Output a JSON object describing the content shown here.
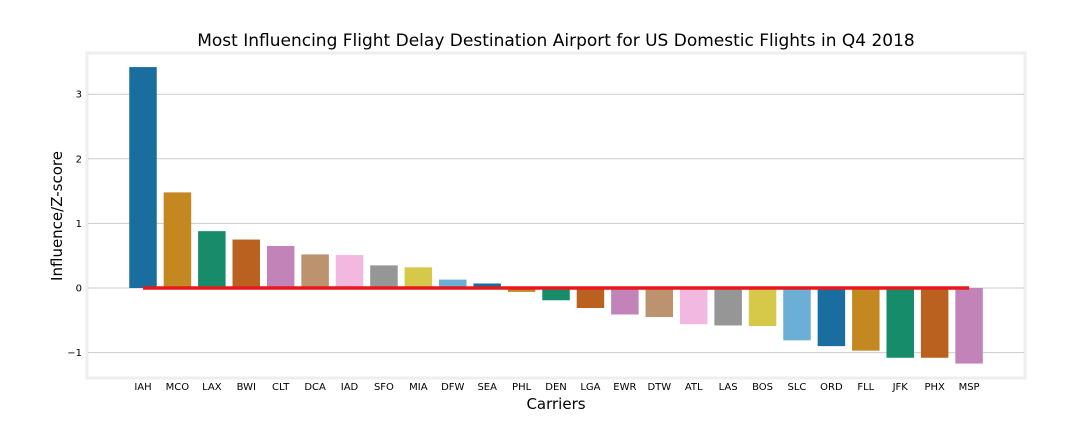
{
  "chart_data": {
    "type": "bar",
    "title": "Most Influencing Flight Delay Destination Airport for US Domestic Flights in Q4 2018",
    "xlabel": "Carriers",
    "ylabel": "Influence/Z-score",
    "ylim": [
      -1.4,
      3.6
    ],
    "yticks": [
      -1,
      0,
      1,
      2,
      3
    ],
    "ytick_labels": [
      "−1",
      "0",
      "1",
      "2",
      "3"
    ],
    "grid": true,
    "categories": [
      "IAH",
      "MCO",
      "LAX",
      "BWI",
      "CLT",
      "DCA",
      "IAD",
      "SFO",
      "MIA",
      "DFW",
      "SEA",
      "PHL",
      "DEN",
      "LGA",
      "EWR",
      "DTW",
      "ATL",
      "LAS",
      "BOS",
      "SLC",
      "ORD",
      "FLL",
      "JFK",
      "PHX",
      "MSP"
    ],
    "values": [
      3.42,
      1.48,
      0.88,
      0.75,
      0.65,
      0.52,
      0.51,
      0.35,
      0.32,
      0.13,
      0.07,
      -0.06,
      -0.19,
      -0.31,
      -0.41,
      -0.45,
      -0.56,
      -0.58,
      -0.59,
      -0.81,
      -0.9,
      -0.97,
      -1.08,
      -1.08,
      -1.17
    ],
    "colors": [
      "#1a6e9f",
      "#c48820",
      "#168c6a",
      "#ba611f",
      "#c283b9",
      "#bd936f",
      "#f2b8e0",
      "#969696",
      "#d6c94a",
      "#6bafd6",
      "#1a6e9f",
      "#c48820",
      "#168c6a",
      "#ba611f",
      "#c283b9",
      "#bd936f",
      "#f2b8e0",
      "#969696",
      "#d6c94a",
      "#6bafd6",
      "#1a6e9f",
      "#c48820",
      "#168c6a",
      "#ba611f",
      "#c283b9"
    ],
    "reference_line": {
      "y": 0,
      "color": "#e8191b"
    }
  }
}
